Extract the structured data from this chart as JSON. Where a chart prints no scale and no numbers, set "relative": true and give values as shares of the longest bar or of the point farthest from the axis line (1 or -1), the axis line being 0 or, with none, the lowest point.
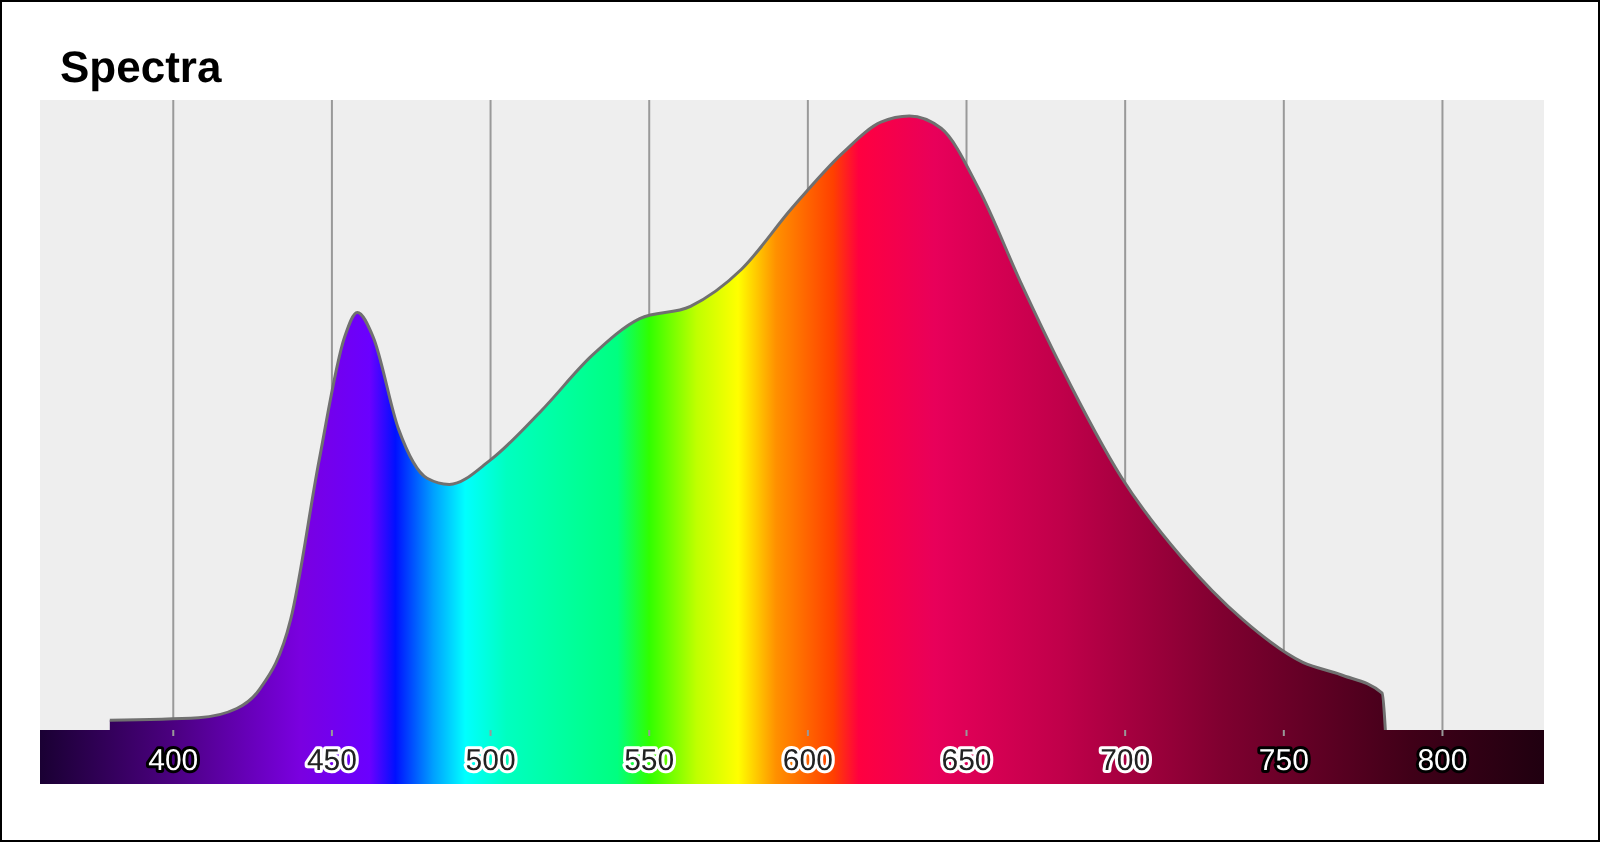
{
  "chart_data": {
    "type": "area",
    "title": "Spectra",
    "relative": true,
    "grid": "x",
    "xlim": [
      358,
      832
    ],
    "xticks": [
      400,
      450,
      500,
      550,
      600,
      650,
      700,
      750,
      800
    ],
    "series": [
      {
        "color": "#707070",
        "x": [
          380,
          408,
          420,
          427,
          437,
          446,
          454,
          458,
          463,
          471,
          480,
          487,
          500,
          516,
          532,
          547,
          563,
          579,
          595,
          611,
          623,
          632,
          642,
          654,
          667,
          680,
          699,
          718,
          737,
          756,
          768,
          781,
          782
        ],
        "values": [
          0.016,
          0.02,
          0.035,
          0.065,
          0.18,
          0.44,
          0.64,
          0.68,
          0.64,
          0.49,
          0.41,
          0.4,
          0.44,
          0.52,
          0.61,
          0.67,
          0.69,
          0.75,
          0.85,
          0.94,
          0.99,
          1,
          0.98,
          0.88,
          0.73,
          0.59,
          0.41,
          0.28,
          0.18,
          0.11,
          0.09,
          0.06,
          0
        ]
      }
    ]
  }
}
